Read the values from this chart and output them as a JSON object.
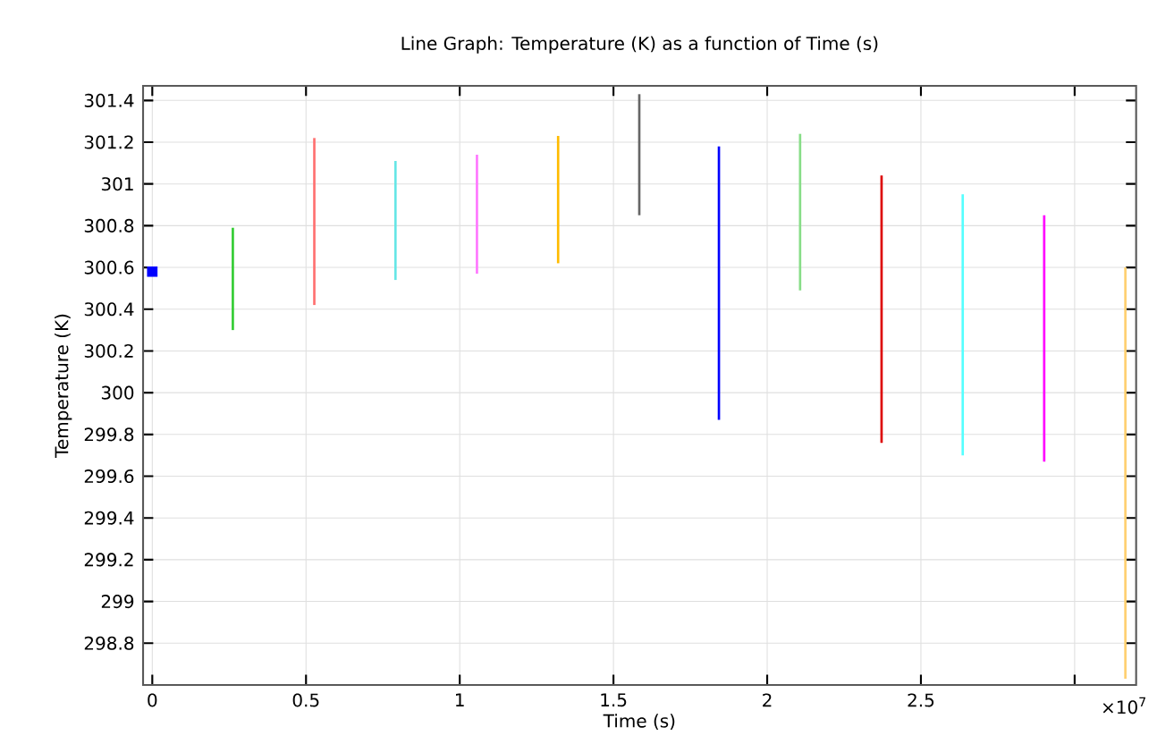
{
  "chart_data": {
    "type": "line",
    "title": "Line Graph: Temperature (K) as a function of Time (s)",
    "xlabel": "Time (s)",
    "ylabel": "Temperature (K)",
    "xlim": [
      -0.03,
      3.2
    ],
    "ylim": [
      298.6,
      301.47
    ],
    "xticks": [
      0,
      0.5,
      1,
      1.5,
      2,
      2.5,
      {
        "value": 3,
        "label": null
      }
    ],
    "yticks": [
      298.8,
      299,
      299.2,
      299.4,
      299.6,
      299.8,
      300,
      300.2,
      300.4,
      300.6,
      300.8,
      301,
      301.2,
      301.4
    ],
    "grid": true,
    "annotations": [
      "×10$^{7}$"
    ],
    "series": [
      {
        "type": "scatter",
        "marker": "square",
        "color": "#0000ff",
        "x": [
          0
        ],
        "values": [
          300.58
        ]
      },
      {
        "color": "#33cc33",
        "x": [
          0.262,
          0.262
        ],
        "values": [
          300.3,
          300.79
        ]
      },
      {
        "color": "#ff7070",
        "x": [
          0.527,
          0.527
        ],
        "values": [
          300.42,
          301.22
        ]
      },
      {
        "color": "#66e6e6",
        "x": [
          0.791,
          0.791
        ],
        "values": [
          300.54,
          301.11
        ]
      },
      {
        "color": "#ff77ff",
        "x": [
          1.056,
          1.056
        ],
        "values": [
          300.57,
          301.14
        ]
      },
      {
        "color": "#ffbb00",
        "x": [
          1.32,
          1.32
        ],
        "values": [
          300.62,
          301.23
        ]
      },
      {
        "color": "#666666",
        "x": [
          1.584,
          1.584
        ],
        "values": [
          300.85,
          301.43
        ]
      },
      {
        "color": "#0000ff",
        "x": [
          1.843,
          1.843
        ],
        "values": [
          299.87,
          301.18
        ]
      },
      {
        "color": "#88dd88",
        "x": [
          2.107,
          2.107
        ],
        "values": [
          300.49,
          301.24
        ]
      },
      {
        "color": "#dd0000",
        "x": [
          2.372,
          2.372
        ],
        "values": [
          299.76,
          301.04
        ]
      },
      {
        "color": "#55ffff",
        "x": [
          2.636,
          2.636
        ],
        "values": [
          299.7,
          300.95
        ]
      },
      {
        "color": "#ff00ff",
        "x": [
          2.901,
          2.901
        ],
        "values": [
          299.67,
          300.85
        ]
      },
      {
        "color": "#ffd070",
        "x": [
          3.165,
          3.165
        ],
        "values": [
          298.63,
          300.6
        ]
      }
    ]
  }
}
